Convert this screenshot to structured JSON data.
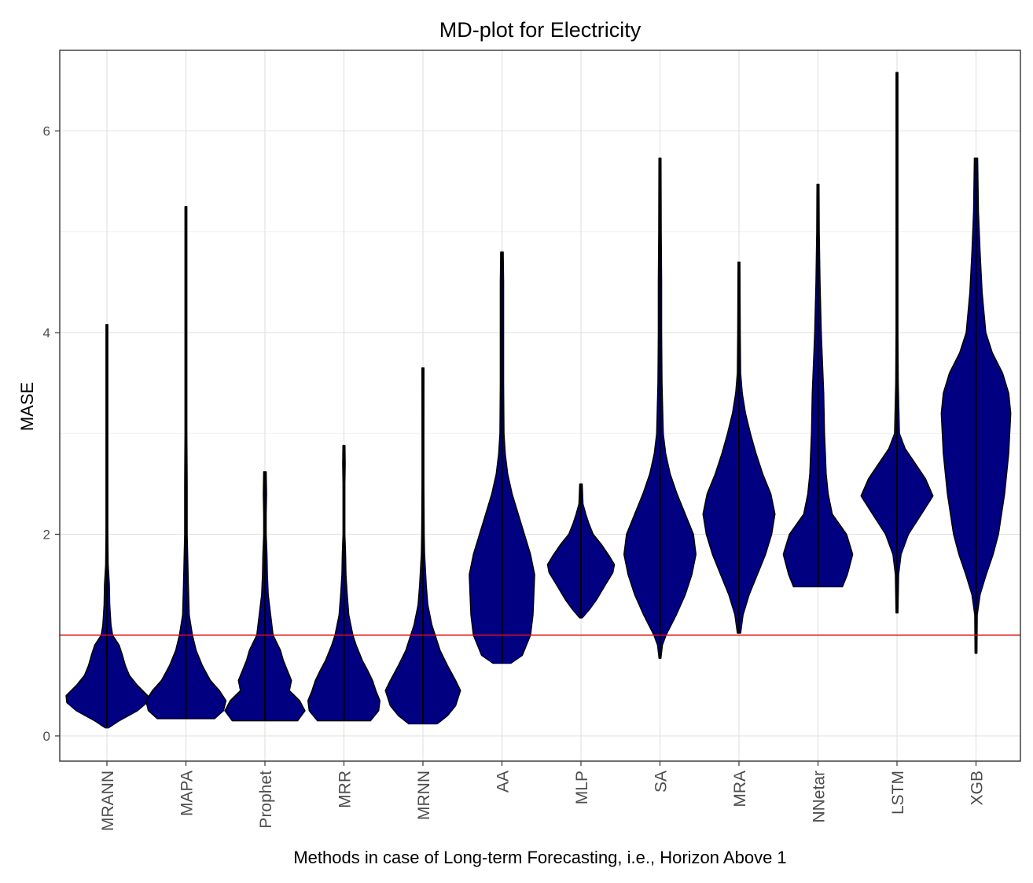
{
  "chart_data": {
    "type": "violin",
    "title": "MD-plot for Electricity",
    "xlabel": "Methods in case of Long-term Forecasting, i.e., Horizon Above 1",
    "ylabel": "MASE",
    "ylim": [
      -0.25,
      6.8
    ],
    "yticks": [
      0,
      2,
      4,
      6
    ],
    "grid": true,
    "reference_line": {
      "y": 1.0,
      "color": "#FF0000"
    },
    "fill_color": "#000080",
    "categories": [
      "MRANN",
      "MAPA",
      "Prophet",
      "MRR",
      "MRNN",
      "AA",
      "MLP",
      "SA",
      "MRA",
      "NNetar",
      "LSTM",
      "XGB"
    ],
    "series": [
      {
        "name": "MRANN",
        "min": 0.08,
        "max": 4.08,
        "profile": [
          [
            0.08,
            0.04
          ],
          [
            0.15,
            0.3
          ],
          [
            0.25,
            0.75
          ],
          [
            0.33,
            0.98
          ],
          [
            0.4,
            1.0
          ],
          [
            0.5,
            0.75
          ],
          [
            0.6,
            0.55
          ],
          [
            0.7,
            0.45
          ],
          [
            0.8,
            0.38
          ],
          [
            0.9,
            0.3
          ],
          [
            1.0,
            0.14
          ],
          [
            1.1,
            0.1
          ],
          [
            1.3,
            0.07
          ],
          [
            1.5,
            0.06
          ],
          [
            1.7,
            0.03
          ],
          [
            2.0,
            0.02
          ],
          [
            3.0,
            0.02
          ],
          [
            4.08,
            0.015
          ]
        ]
      },
      {
        "name": "MAPA",
        "min": 0.17,
        "max": 5.25,
        "profile": [
          [
            0.17,
            0.7
          ],
          [
            0.25,
            0.92
          ],
          [
            0.35,
            0.98
          ],
          [
            0.45,
            0.82
          ],
          [
            0.55,
            0.6
          ],
          [
            0.7,
            0.4
          ],
          [
            0.85,
            0.25
          ],
          [
            1.0,
            0.16
          ],
          [
            1.2,
            0.08
          ],
          [
            1.5,
            0.06
          ],
          [
            2.0,
            0.03
          ],
          [
            2.5,
            0.03
          ],
          [
            3.0,
            0.02
          ],
          [
            4.0,
            0.02
          ],
          [
            4.5,
            0.02
          ],
          [
            5.25,
            0.015
          ]
        ]
      },
      {
        "name": "Prophet",
        "min": 0.15,
        "max": 2.62,
        "profile": [
          [
            0.15,
            0.8
          ],
          [
            0.25,
            0.98
          ],
          [
            0.35,
            0.85
          ],
          [
            0.45,
            0.6
          ],
          [
            0.55,
            0.65
          ],
          [
            0.65,
            0.55
          ],
          [
            0.75,
            0.45
          ],
          [
            0.85,
            0.38
          ],
          [
            1.0,
            0.2
          ],
          [
            1.2,
            0.14
          ],
          [
            1.4,
            0.08
          ],
          [
            1.6,
            0.06
          ],
          [
            1.8,
            0.05
          ],
          [
            2.0,
            0.03
          ],
          [
            2.2,
            0.03
          ],
          [
            2.4,
            0.04
          ],
          [
            2.62,
            0.03
          ]
        ]
      },
      {
        "name": "MRR",
        "min": 0.15,
        "max": 2.88,
        "profile": [
          [
            0.15,
            0.65
          ],
          [
            0.25,
            0.85
          ],
          [
            0.35,
            0.88
          ],
          [
            0.45,
            0.78
          ],
          [
            0.55,
            0.7
          ],
          [
            0.65,
            0.58
          ],
          [
            0.75,
            0.45
          ],
          [
            0.9,
            0.3
          ],
          [
            1.0,
            0.22
          ],
          [
            1.2,
            0.12
          ],
          [
            1.4,
            0.08
          ],
          [
            1.6,
            0.05
          ],
          [
            1.8,
            0.04
          ],
          [
            2.0,
            0.02
          ],
          [
            2.5,
            0.02
          ],
          [
            2.7,
            0.03
          ],
          [
            2.88,
            0.025
          ]
        ]
      },
      {
        "name": "MRNN",
        "min": 0.12,
        "max": 3.65,
        "profile": [
          [
            0.12,
            0.35
          ],
          [
            0.2,
            0.6
          ],
          [
            0.3,
            0.8
          ],
          [
            0.45,
            0.92
          ],
          [
            0.55,
            0.8
          ],
          [
            0.7,
            0.6
          ],
          [
            0.85,
            0.42
          ],
          [
            1.0,
            0.3
          ],
          [
            1.1,
            0.22
          ],
          [
            1.3,
            0.12
          ],
          [
            1.5,
            0.08
          ],
          [
            1.8,
            0.04
          ],
          [
            2.0,
            0.03
          ],
          [
            2.5,
            0.02
          ],
          [
            3.0,
            0.02
          ],
          [
            3.65,
            0.025
          ]
        ]
      },
      {
        "name": "AA",
        "min": 0.72,
        "max": 4.8,
        "profile": [
          [
            0.72,
            0.22
          ],
          [
            0.8,
            0.5
          ],
          [
            0.9,
            0.6
          ],
          [
            1.0,
            0.7
          ],
          [
            1.2,
            0.76
          ],
          [
            1.4,
            0.78
          ],
          [
            1.6,
            0.8
          ],
          [
            1.8,
            0.7
          ],
          [
            2.0,
            0.55
          ],
          [
            2.2,
            0.4
          ],
          [
            2.4,
            0.25
          ],
          [
            2.6,
            0.14
          ],
          [
            2.8,
            0.08
          ],
          [
            3.0,
            0.05
          ],
          [
            3.5,
            0.04
          ],
          [
            4.0,
            0.04
          ],
          [
            4.5,
            0.04
          ],
          [
            4.8,
            0.03
          ]
        ]
      },
      {
        "name": "MLP",
        "min": 1.17,
        "max": 2.5,
        "profile": [
          [
            1.17,
            0.03
          ],
          [
            1.25,
            0.2
          ],
          [
            1.35,
            0.38
          ],
          [
            1.5,
            0.6
          ],
          [
            1.62,
            0.78
          ],
          [
            1.7,
            0.82
          ],
          [
            1.78,
            0.7
          ],
          [
            1.9,
            0.5
          ],
          [
            2.0,
            0.3
          ],
          [
            2.1,
            0.2
          ],
          [
            2.2,
            0.12
          ],
          [
            2.3,
            0.05
          ],
          [
            2.5,
            0.03
          ]
        ]
      },
      {
        "name": "SA",
        "min": 0.77,
        "max": 5.73,
        "profile": [
          [
            0.77,
            0.02
          ],
          [
            0.9,
            0.06
          ],
          [
            1.0,
            0.15
          ],
          [
            1.2,
            0.4
          ],
          [
            1.4,
            0.62
          ],
          [
            1.6,
            0.78
          ],
          [
            1.8,
            0.88
          ],
          [
            2.0,
            0.82
          ],
          [
            2.2,
            0.62
          ],
          [
            2.4,
            0.42
          ],
          [
            2.6,
            0.25
          ],
          [
            2.8,
            0.14
          ],
          [
            3.0,
            0.08
          ],
          [
            3.5,
            0.05
          ],
          [
            4.0,
            0.04
          ],
          [
            4.5,
            0.04
          ],
          [
            5.0,
            0.03
          ],
          [
            5.73,
            0.025
          ]
        ]
      },
      {
        "name": "MRA",
        "min": 1.02,
        "max": 4.7,
        "profile": [
          [
            1.02,
            0.04
          ],
          [
            1.2,
            0.1
          ],
          [
            1.4,
            0.25
          ],
          [
            1.6,
            0.45
          ],
          [
            1.8,
            0.65
          ],
          [
            2.0,
            0.8
          ],
          [
            2.2,
            0.88
          ],
          [
            2.4,
            0.78
          ],
          [
            2.6,
            0.58
          ],
          [
            2.8,
            0.42
          ],
          [
            3.0,
            0.28
          ],
          [
            3.2,
            0.16
          ],
          [
            3.4,
            0.08
          ],
          [
            3.6,
            0.04
          ],
          [
            4.0,
            0.03
          ],
          [
            4.7,
            0.02
          ]
        ]
      },
      {
        "name": "NNetar",
        "min": 1.48,
        "max": 5.47,
        "profile": [
          [
            1.48,
            0.6
          ],
          [
            1.6,
            0.72
          ],
          [
            1.8,
            0.85
          ],
          [
            2.0,
            0.7
          ],
          [
            2.2,
            0.35
          ],
          [
            2.4,
            0.25
          ],
          [
            2.6,
            0.2
          ],
          [
            2.8,
            0.18
          ],
          [
            3.0,
            0.16
          ],
          [
            3.4,
            0.14
          ],
          [
            3.8,
            0.1
          ],
          [
            4.0,
            0.08
          ],
          [
            4.5,
            0.05
          ],
          [
            5.0,
            0.03
          ],
          [
            5.47,
            0.025
          ]
        ]
      },
      {
        "name": "LSTM",
        "min": 1.22,
        "max": 6.58,
        "profile": [
          [
            1.22,
            0.01
          ],
          [
            1.6,
            0.04
          ],
          [
            1.8,
            0.1
          ],
          [
            2.0,
            0.28
          ],
          [
            2.2,
            0.6
          ],
          [
            2.38,
            0.88
          ],
          [
            2.55,
            0.7
          ],
          [
            2.7,
            0.45
          ],
          [
            2.85,
            0.2
          ],
          [
            3.0,
            0.06
          ],
          [
            3.5,
            0.03
          ],
          [
            4.0,
            0.02
          ],
          [
            5.0,
            0.015
          ],
          [
            6.0,
            0.01
          ],
          [
            6.58,
            0.01
          ]
        ]
      },
      {
        "name": "XGB",
        "min": 0.82,
        "max": 5.73,
        "profile": [
          [
            0.82,
            0.01
          ],
          [
            1.2,
            0.03
          ],
          [
            1.4,
            0.1
          ],
          [
            1.6,
            0.25
          ],
          [
            1.8,
            0.42
          ],
          [
            2.0,
            0.55
          ],
          [
            2.4,
            0.7
          ],
          [
            2.8,
            0.8
          ],
          [
            3.2,
            0.85
          ],
          [
            3.4,
            0.8
          ],
          [
            3.6,
            0.65
          ],
          [
            3.8,
            0.4
          ],
          [
            4.0,
            0.24
          ],
          [
            4.4,
            0.15
          ],
          [
            4.8,
            0.1
          ],
          [
            5.2,
            0.06
          ],
          [
            5.73,
            0.04
          ]
        ]
      }
    ]
  }
}
